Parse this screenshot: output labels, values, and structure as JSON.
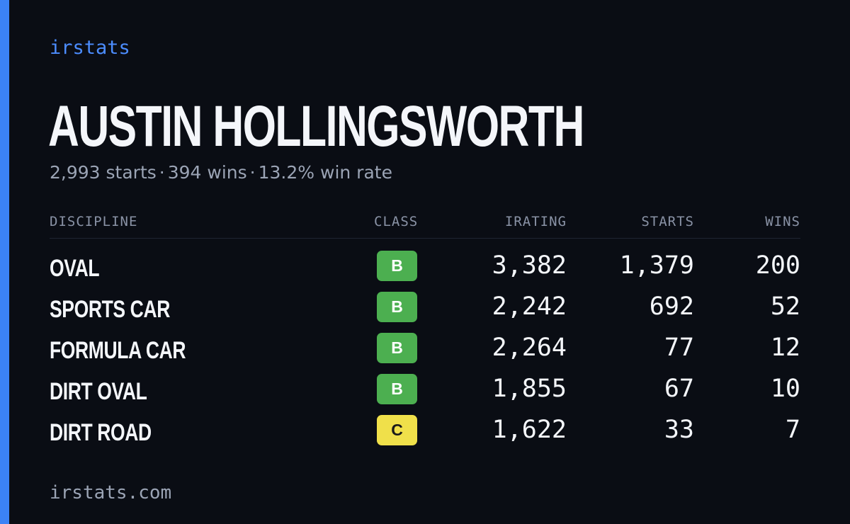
{
  "brand": "irstats",
  "driver": {
    "name": "AUSTIN HOLLINGSWORTH",
    "starts_text": "2,993 starts",
    "wins_text": "394 wins",
    "winrate_text": "13.2% win rate",
    "separator": "·"
  },
  "table": {
    "headers": {
      "discipline": "DISCIPLINE",
      "class": "CLASS",
      "irating": "IRATING",
      "starts": "STARTS",
      "wins": "WINS"
    },
    "rows": [
      {
        "discipline": "OVAL",
        "class": "B",
        "class_color": "#4caf50",
        "irating": "3,382",
        "starts": "1,379",
        "wins": "200"
      },
      {
        "discipline": "SPORTS CAR",
        "class": "B",
        "class_color": "#4caf50",
        "irating": "2,242",
        "starts": "692",
        "wins": "52"
      },
      {
        "discipline": "FORMULA CAR",
        "class": "B",
        "class_color": "#4caf50",
        "irating": "2,264",
        "starts": "77",
        "wins": "12"
      },
      {
        "discipline": "DIRT OVAL",
        "class": "B",
        "class_color": "#4caf50",
        "irating": "1,855",
        "starts": "67",
        "wins": "10"
      },
      {
        "discipline": "DIRT ROAD",
        "class": "C",
        "class_color": "#f0e04a",
        "irating": "1,622",
        "starts": "33",
        "wins": "7"
      }
    ]
  },
  "footer": "irstats.com",
  "colors": {
    "background": "#0a0d14",
    "accent": "#3b82f6",
    "brand": "#4c8dff",
    "text": "#f4f6fa",
    "muted": "#9ba4b5",
    "class_b_text": "#ffffff",
    "class_c_text": "#1a1a1a"
  }
}
